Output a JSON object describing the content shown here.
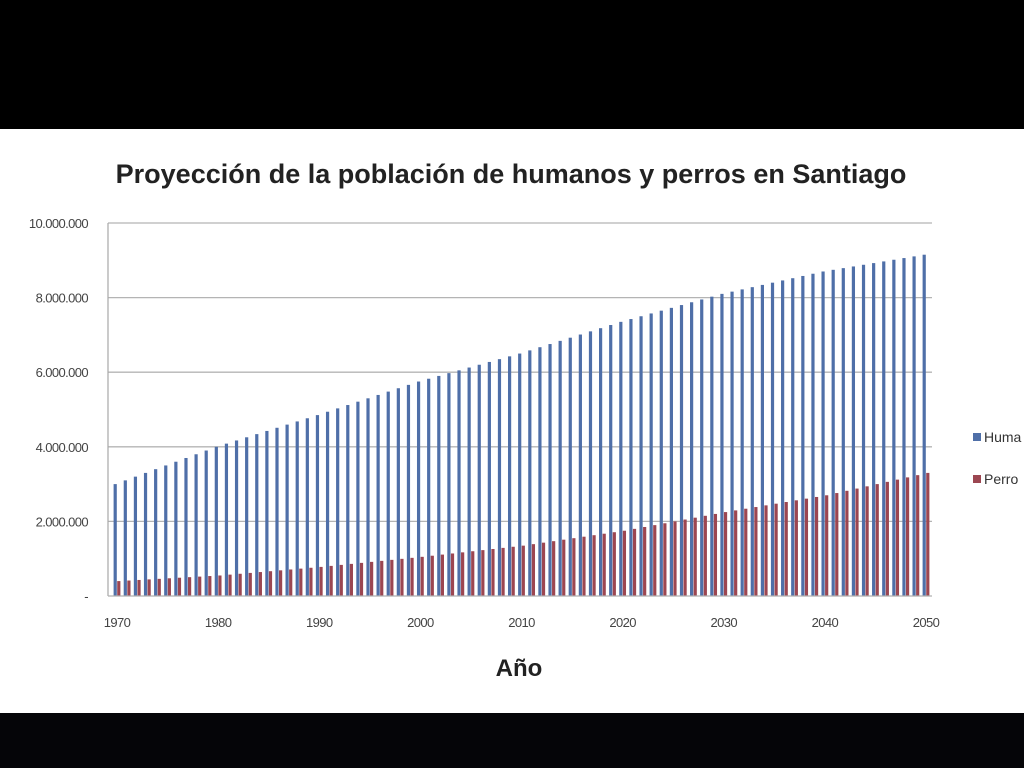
{
  "chart_data": {
    "type": "bar",
    "title": "Proyección de la población de humanos y perros en Santiago",
    "xlabel": "Año",
    "ylabel": "",
    "ylim": [
      0,
      10000000
    ],
    "yticks": [
      0,
      2000000,
      4000000,
      6000000,
      8000000,
      10000000
    ],
    "ytick_labels": [
      "-",
      "2.000.000",
      "4.000.000",
      "6.000.000",
      "8.000.000",
      "10.000.000"
    ],
    "xtick_labels": [
      "1970",
      "1980",
      "1990",
      "2000",
      "2010",
      "2020",
      "2030",
      "2040",
      "2050"
    ],
    "grid": true,
    "legend_position": "right",
    "x_start": 1970,
    "x_end": 2050,
    "key_years": [
      1970,
      1980,
      1990,
      2000,
      2010,
      2020,
      2030,
      2040,
      2050
    ],
    "series": [
      {
        "name": "Humanos",
        "legend_label": "Huma",
        "color": "#4F6FA8",
        "key_values": [
          3000000,
          4000000,
          4850000,
          5750000,
          6500000,
          7350000,
          8100000,
          8700000,
          9150000
        ]
      },
      {
        "name": "Perros",
        "legend_label": "Perro",
        "color": "#9C4651",
        "key_values": [
          400000,
          550000,
          780000,
          1050000,
          1350000,
          1750000,
          2250000,
          2700000,
          3300000
        ]
      }
    ]
  }
}
